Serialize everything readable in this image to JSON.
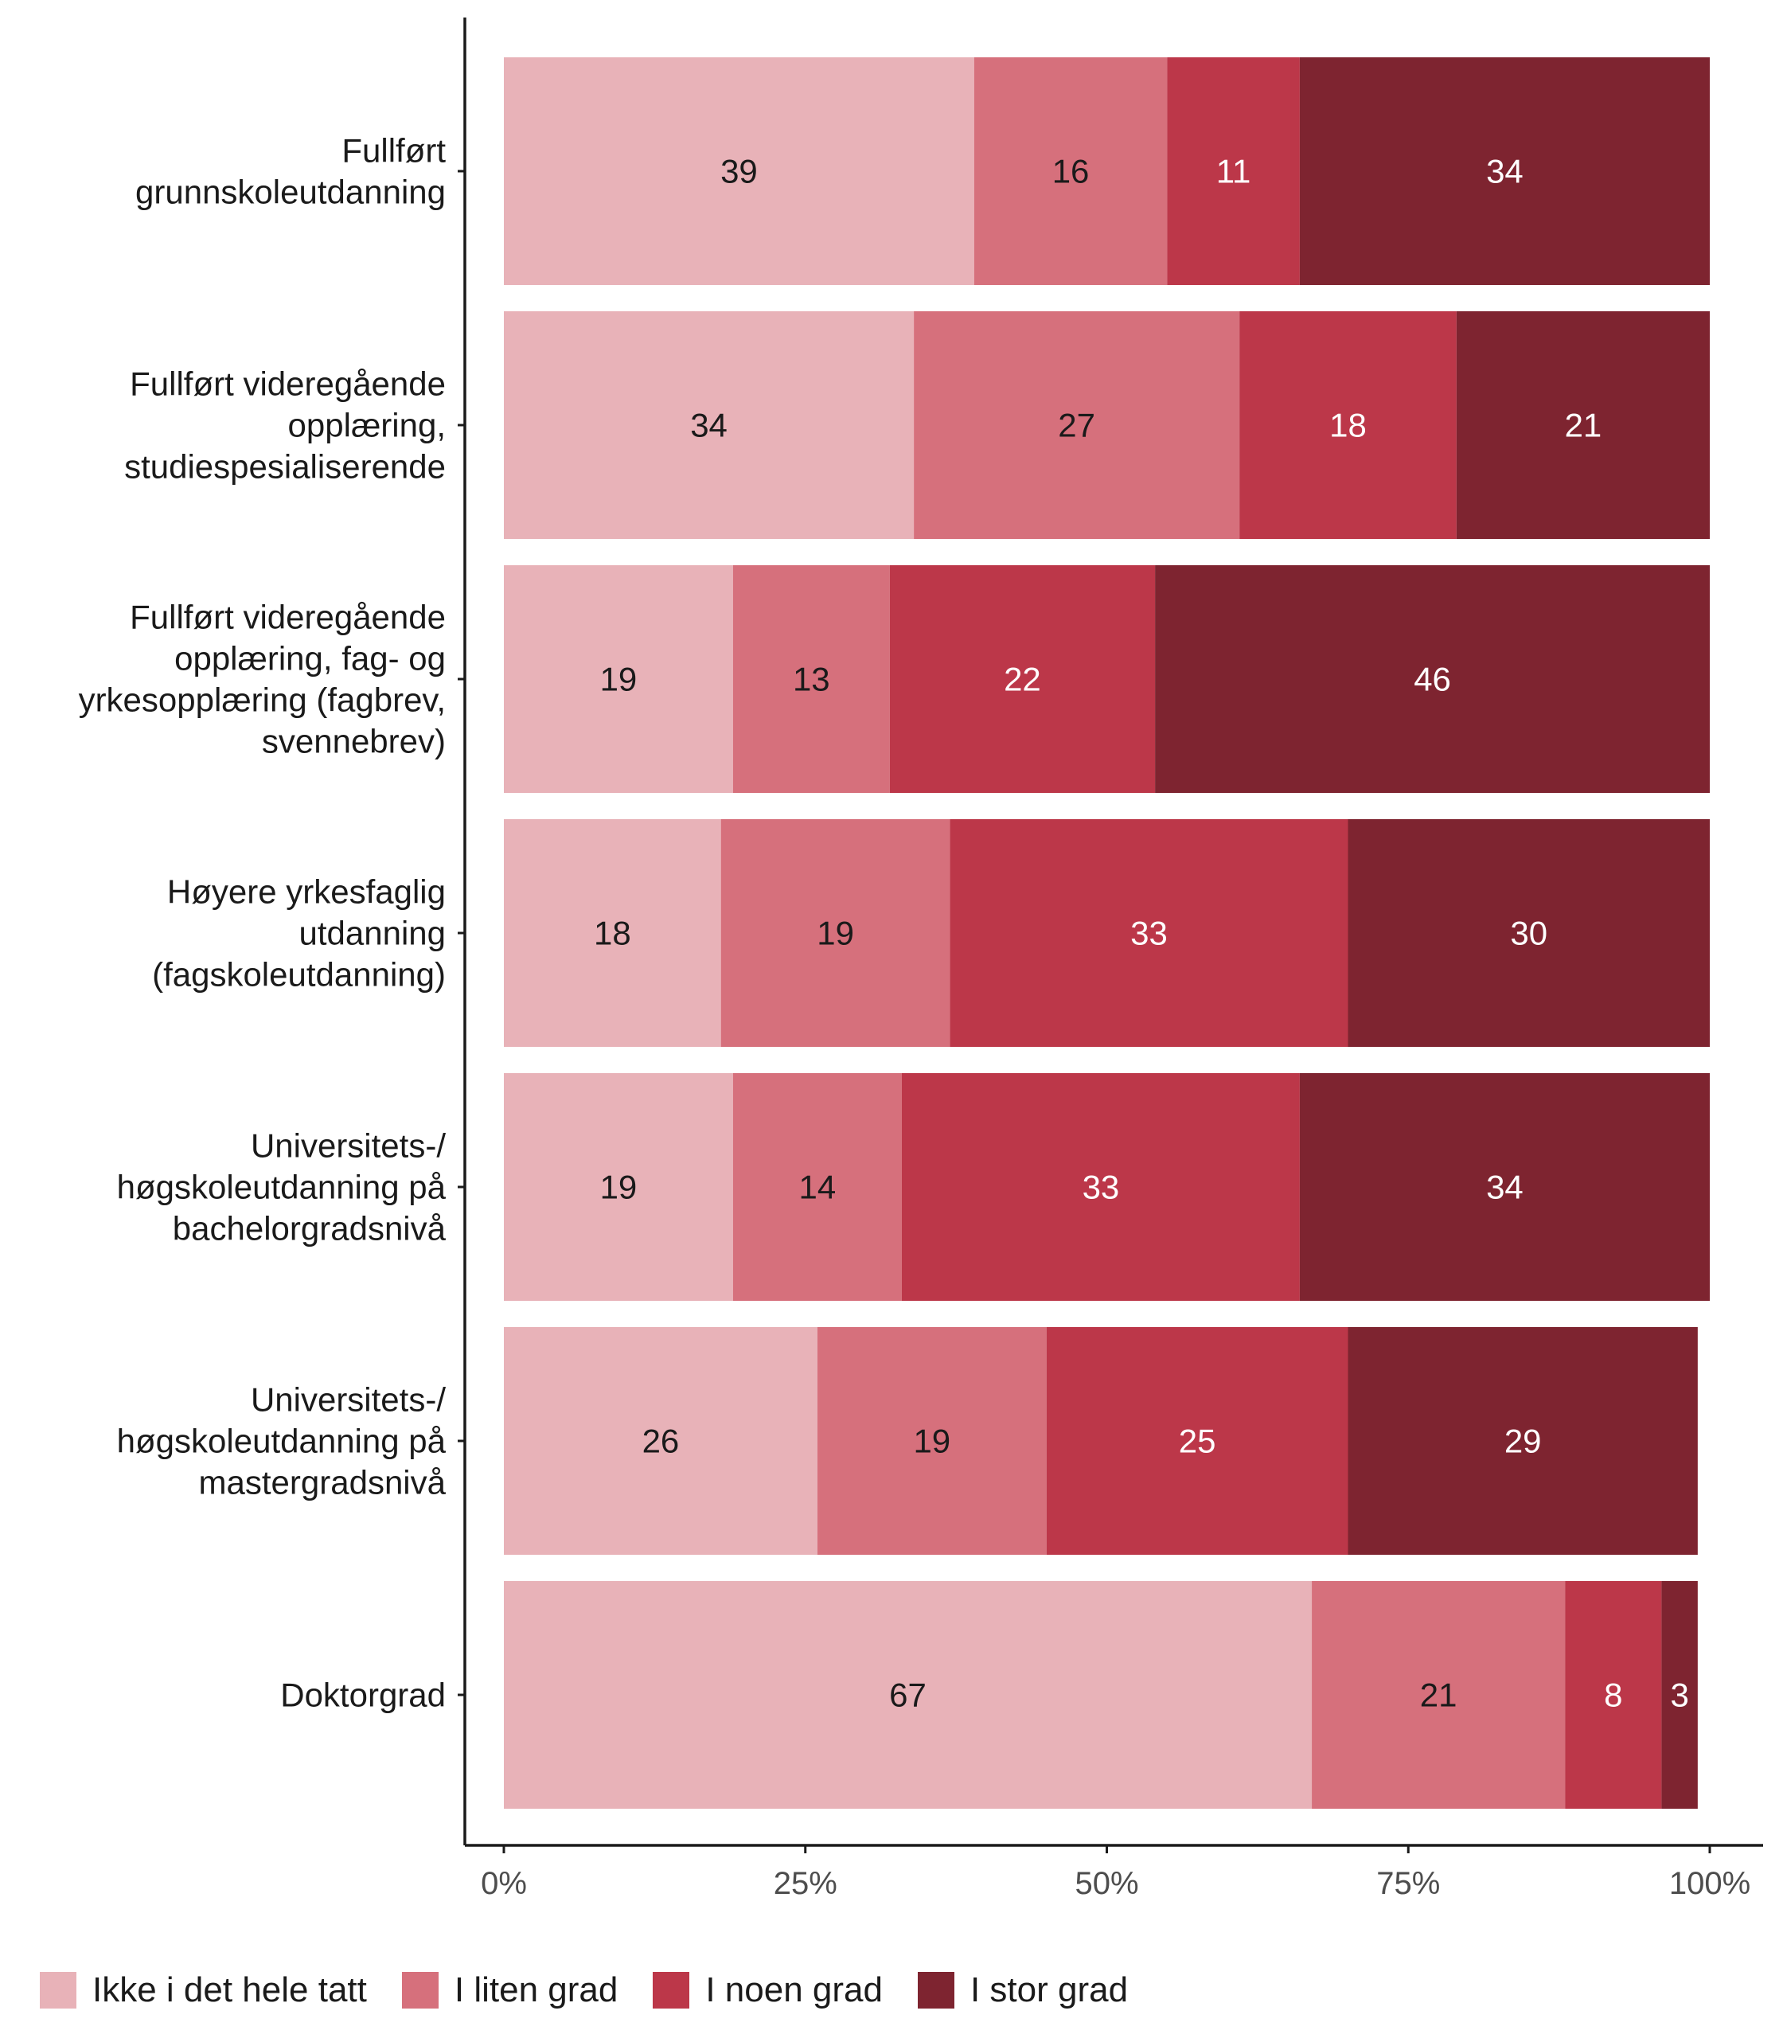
{
  "chart_data": {
    "type": "bar",
    "orientation": "horizontal",
    "stacked": true,
    "percent": true,
    "categories": [
      [
        "Fullført",
        "grunnskoleutdanning"
      ],
      [
        "Fullført videregående",
        "opplæring,",
        "studiespesialiserende"
      ],
      [
        "Fullført videregående",
        "opplæring, fag- og",
        "yrkesopplæring (fagbrev,",
        "svennebrev)"
      ],
      [
        "Høyere yrkesfaglig",
        "utdanning",
        "(fagskoleutdanning)"
      ],
      [
        "Universitets-/",
        "høgskoleutdanning på",
        "bachelorgradsnivå"
      ],
      [
        "Universitets-/",
        "høgskoleutdanning på",
        "mastergradsnivå"
      ],
      [
        "Doktorgrad"
      ]
    ],
    "series": [
      {
        "name": "Ikke i det hele tatt",
        "color": "#E8B2B8",
        "label_color": "#1a1a1a",
        "values": [
          39,
          34,
          19,
          18,
          19,
          26,
          67
        ]
      },
      {
        "name": "I liten grad",
        "color": "#D6707C",
        "label_color": "#1a1a1a",
        "values": [
          16,
          27,
          13,
          19,
          14,
          19,
          21
        ]
      },
      {
        "name": "I noen grad",
        "color": "#BC3749",
        "label_color": "#ffffff",
        "values": [
          11,
          18,
          22,
          33,
          33,
          25,
          8
        ]
      },
      {
        "name": "I stor grad",
        "color": "#7E2430",
        "label_color": "#ffffff",
        "values": [
          34,
          21,
          46,
          30,
          34,
          29,
          3
        ]
      }
    ],
    "xticks": [
      "0%",
      "25%",
      "50%",
      "75%",
      "100%"
    ],
    "xlim": [
      0,
      100
    ],
    "grid": false,
    "legend": "bottom",
    "title": "",
    "xlabel": "",
    "ylabel": ""
  }
}
